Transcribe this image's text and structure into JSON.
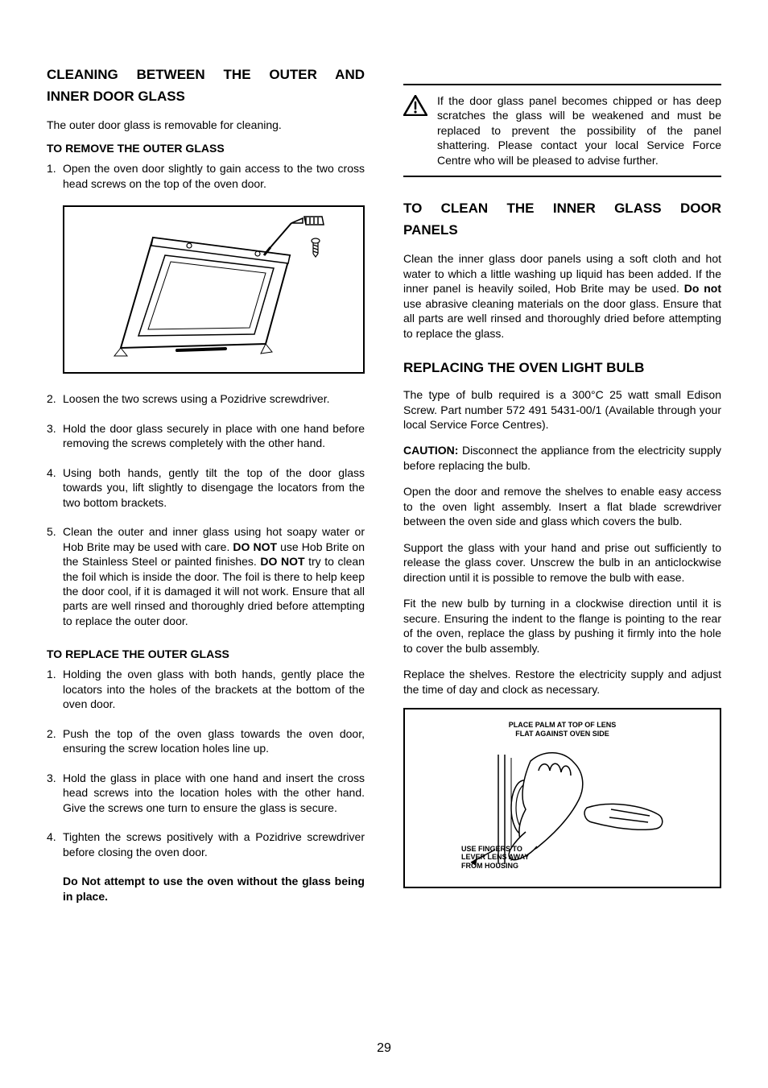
{
  "page_number": "29",
  "left": {
    "heading_lines": [
      "CLEANING BETWEEN THE OUTER AND",
      "INNER DOOR GLASS"
    ],
    "intro": "The outer door glass is removable for cleaning.",
    "remove": {
      "title": "TO REMOVE THE OUTER GLASS",
      "items": [
        "Open the oven door slightly to gain access to the two cross head screws on the top of the oven door.",
        "Loosen the two screws using a Pozidrive screwdriver.",
        "Hold the door glass securely in place with one hand before removing the screws completely with the other hand.",
        "Using both hands, gently tilt the top of the door glass towards you, lift slightly to disengage the locators from the two bottom brackets.",
        "Clean the outer and inner glass using hot soapy water or Hob Brite may be used with care.  DO NOT use Hob Brite on the Stainless Steel or painted finishes.  DO NOT try to clean the foil which is inside the door.  The foil is there to help keep the door cool, if it is damaged it will not work. Ensure that all parts are well rinsed and thoroughly dried before attempting to replace the outer door."
      ]
    },
    "replace": {
      "title": "TO REPLACE THE OUTER GLASS",
      "items": [
        "Holding the oven glass with both hands, gently place the locators into the holes of the brackets at the bottom of the oven door.",
        "Push the top of the oven glass towards the oven door, ensuring the screw location holes line up.",
        "Hold the glass in place with one hand and insert the cross head screws into the location holes with the other hand. Give the screws one turn to ensure the glass is secure.",
        "Tighten the screws positively with a Pozidrive screwdriver before closing the oven door."
      ],
      "final_bold": "Do Not attempt to use the oven without the glass being in place."
    }
  },
  "right": {
    "warning": "If the door glass panel becomes chipped or has deep scratches the glass will be weakened and must be replaced to prevent the possibility of the panel shattering.  Please contact your local Service Force Centre who will be pleased to advise further.",
    "clean": {
      "heading_lines": [
        "TO CLEAN THE INNER GLASS DOOR",
        "PANELS"
      ],
      "body_pre": "Clean the inner glass door panels using a soft cloth and hot water to which a little washing up liquid has been added.  If the inner panel is heavily soiled, Hob Brite may be used.  ",
      "body_bold": "Do not",
      "body_post": " use abrasive cleaning materials on the door glass.  Ensure that all parts are well rinsed and thoroughly dried before attempting to replace the glass."
    },
    "bulb": {
      "heading": "REPLACING THE OVEN LIGHT BULB",
      "p1": "The type of bulb required is a 300°C 25 watt small Edison Screw. Part number 572 491 5431-00/1 (Available through your local Service Force Centres).",
      "caution_label": "CAUTION:",
      "caution_text": "  Disconnect the appliance from the electricity supply before replacing the bulb.",
      "p2": "Open the door and remove the shelves to enable easy access to the oven light assembly.  Insert a flat blade screwdriver between the oven side and glass which covers the bulb.",
      "p3": "Support the glass with your hand and prise out sufficiently to release the glass cover.  Unscrew the bulb in an anticlockwise direction until it is possible to remove the bulb with ease.",
      "p4": "Fit the new bulb by turning in a clockwise direction until it is secure.  Ensuring the indent to the flange is pointing to the rear of the oven, replace the glass by pushing it firmly into the hole to cover the bulb assembly.",
      "p5": "Replace the shelves.  Restore the electricity supply and adjust the time of day and clock as necessary.",
      "diagram_top": "PLACE PALM AT TOP OF LENS\nFLAT AGAINST OVEN SIDE",
      "diagram_bottom": "USE FINGERS TO\nLEVER LENS AWAY\nFROM HOUSING"
    }
  }
}
